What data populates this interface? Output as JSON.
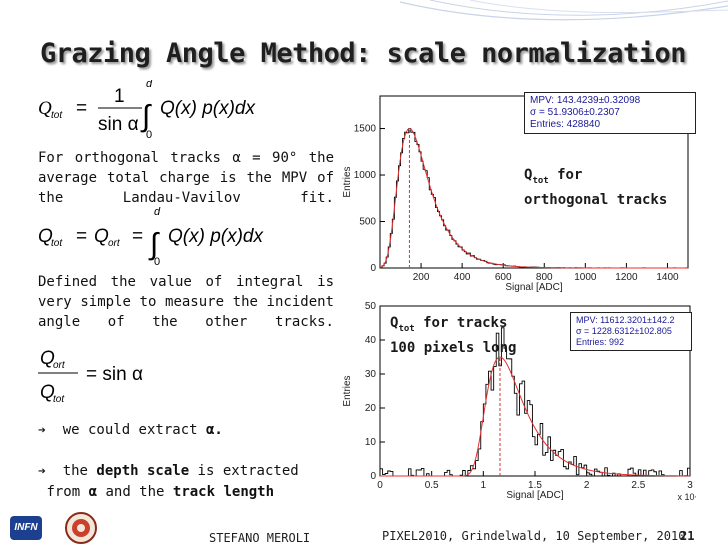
{
  "slide": {
    "title": "Grazing Angle Method: scale normalization",
    "text1": "For orthogonal tracks α = 90° the average total charge is the MPV of the Landau-Vavilov fit.",
    "text2": "Defined the value of integral is very simple to measure the incident angle of the other tracks.",
    "bullet1_pre": "we could extract ",
    "bullet1_alpha": "α.",
    "bullet2_a": "the ",
    "bullet2_b": "depth scale",
    "bullet2_c": " is extracted",
    "bullet2_d": "from ",
    "bullet2_e": "α",
    "bullet2_f": " and the ",
    "bullet2_g": "track length",
    "footer_author": "STEFANO MEROLI",
    "footer_event": "PIXEL2010, Grindelwald, 10 September, 2010",
    "page_number": "21",
    "logo_left": "INFN"
  },
  "equations": {
    "eq1": {
      "lhs": "Q",
      "lhs_sub": "tot",
      "num": "1",
      "den": "sin α",
      "upper": "d",
      "lower": "0",
      "integrand": "Q(x) p(x)dx"
    },
    "eq2": {
      "lhs": "Q",
      "lhs_sub": "tot",
      "mid": "Q",
      "mid_sub": "ort",
      "upper": "d",
      "lower": "0",
      "integrand": "Q(x) p(x)dx"
    },
    "eq3": {
      "num": "Q",
      "num_sub": "ort",
      "den": "Q",
      "den_sub": "tot",
      "rhs": "= sin α"
    }
  },
  "chart_data": [
    {
      "type": "histogram",
      "label_line1": "Q",
      "label_sub": "tot",
      "label_rest": " for",
      "label_line2": "orthogonal tracks",
      "xlabel": "Signal [ADC]",
      "ylabel": "Entries",
      "xlim": [
        0,
        1500
      ],
      "ylim": [
        0,
        1850
      ],
      "xticks": [
        200,
        400,
        600,
        800,
        1000,
        1200,
        1400
      ],
      "yticks": [
        0,
        500,
        1000,
        1500
      ],
      "stats": [
        "MPV: 143.4239±0.32098",
        "σ = 51.9306±0.2307",
        "Entries: 428840"
      ],
      "mpv": 143.4,
      "sigma": 51.9,
      "peak": 1500
    },
    {
      "type": "histogram",
      "label_line1": "Q",
      "label_sub": "tot",
      "label_rest": " for tracks",
      "label_line2": "100 pixels long",
      "xlabel": "Signal [ADC]",
      "ylabel": "Entries",
      "x_multiplier": "x 10⁴",
      "xlim": [
        0,
        3
      ],
      "ylim": [
        0,
        50
      ],
      "xticks": [
        0,
        0.5,
        1,
        1.5,
        2,
        2.5,
        3
      ],
      "xtick_labels": [
        "0",
        "0.5",
        "1",
        "1.5",
        "2",
        "2.5",
        "3"
      ],
      "yticks": [
        0,
        10,
        20,
        30,
        40,
        50
      ],
      "stats": [
        "MPV: 11612.3201±142.2",
        "σ = 1228.6312±102.805",
        "Entries: 992"
      ],
      "mpv": 1.161,
      "sigma": 0.123,
      "peak": 35
    }
  ]
}
